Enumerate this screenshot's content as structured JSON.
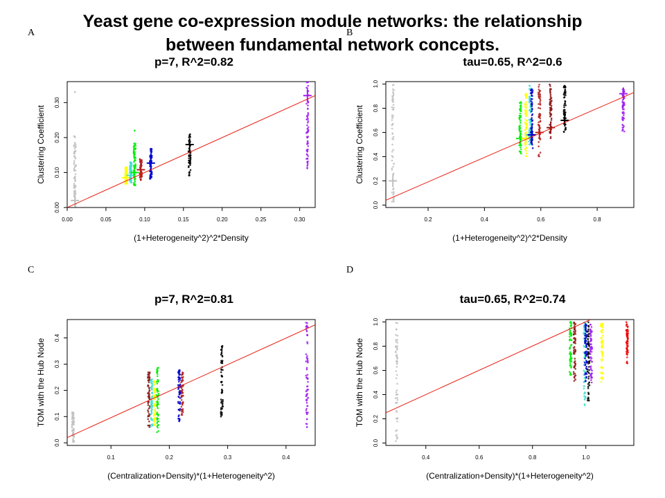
{
  "figure": {
    "title_lines": [
      "Yeast gene co-expression module networks: the relationship",
      "between fundamental network concepts."
    ]
  },
  "chart_data": [
    {
      "type": "scatter",
      "panel_letter": "A",
      "title": "p=7, R^2=0.82",
      "xlabel": "(1+Heterogeneity^2)^2*Density",
      "ylabel": "Clustering Coefficient",
      "xlim": [
        0.0,
        0.32
      ],
      "ylim": [
        0.0,
        0.36
      ],
      "x_ticks": [
        "0.00",
        "0.05",
        "0.10",
        "0.15",
        "0.20",
        "0.25",
        "0.30"
      ],
      "y_ticks": [
        "0.00",
        "0.10",
        "0.20",
        "0.30"
      ],
      "fit_line": [
        [
          0.0,
          0.0
        ],
        [
          0.32,
          0.32
        ]
      ],
      "series": [
        {
          "color": "#bfbfbf",
          "x": 0.01,
          "ymin": 0.0,
          "ymax": 0.205,
          "mean": 0.02,
          "outliers": [
            0.33
          ]
        },
        {
          "color": "#ffff00",
          "x": 0.076,
          "ymin": 0.065,
          "ymax": 0.115,
          "mean": 0.085
        },
        {
          "color": "#40e0d0",
          "x": 0.082,
          "ymin": 0.07,
          "ymax": 0.13,
          "mean": 0.092
        },
        {
          "color": "#00ee00",
          "x": 0.087,
          "ymin": 0.06,
          "ymax": 0.185,
          "mean": 0.1,
          "outliers": [
            0.22
          ]
        },
        {
          "color": "#b22222",
          "x": 0.095,
          "ymin": 0.075,
          "ymax": 0.14,
          "mean": 0.108
        },
        {
          "color": "#0000cd",
          "x": 0.108,
          "ymin": 0.08,
          "ymax": 0.17,
          "mean": 0.127
        },
        {
          "color": "#000000",
          "x": 0.158,
          "ymin": 0.09,
          "ymax": 0.21,
          "mean": 0.18
        },
        {
          "color": "#a020f0",
          "x": 0.31,
          "ymin": 0.11,
          "ymax": 0.36,
          "mean": 0.32,
          "outliers": [
            0.2,
            0.225,
            0.16,
            0.14,
            0.13,
            0.12
          ]
        }
      ]
    },
    {
      "type": "scatter",
      "panel_letter": "B",
      "title": "tau=0.65, R^2=0.6",
      "xlabel": "(1+Heterogeneity^2)^2*Density",
      "ylabel": "Clustering Coefficient",
      "xlim": [
        0.05,
        0.93
      ],
      "ylim": [
        -0.02,
        1.02
      ],
      "x_ticks": [
        "0.2",
        "0.4",
        "0.6",
        "0.8"
      ],
      "y_ticks": [
        "0.0",
        "0.2",
        "0.4",
        "0.6",
        "0.8",
        "1.0"
      ],
      "fit_line": [
        [
          0.05,
          0.04
        ],
        [
          0.93,
          0.93
        ]
      ],
      "series": [
        {
          "color": "#bfbfbf",
          "x": 0.075,
          "ymin": 0.0,
          "ymax": 1.0,
          "mean": 0.2
        },
        {
          "color": "#00ee00",
          "x": 0.527,
          "ymin": 0.42,
          "ymax": 0.86,
          "mean": 0.55
        },
        {
          "color": "#ffff00",
          "x": 0.547,
          "ymin": 0.4,
          "ymax": 0.92,
          "mean": 0.55
        },
        {
          "color": "#40e0d0",
          "x": 0.562,
          "ymin": 0.5,
          "ymax": 1.0,
          "mean": 0.58
        },
        {
          "color": "#0000cd",
          "x": 0.568,
          "ymin": 0.45,
          "ymax": 0.97,
          "mean": 0.58
        },
        {
          "color": "#b22222",
          "x": 0.595,
          "ymin": 0.4,
          "ymax": 1.0,
          "mean": 0.6
        },
        {
          "color": "#8b1a1a",
          "x": 0.635,
          "ymin": 0.55,
          "ymax": 1.0,
          "mean": 0.64
        },
        {
          "color": "#000000",
          "x": 0.685,
          "ymin": 0.6,
          "ymax": 1.0,
          "mean": 0.7
        },
        {
          "color": "#a020f0",
          "x": 0.893,
          "ymin": 0.6,
          "ymax": 1.0,
          "mean": 0.92
        }
      ]
    },
    {
      "type": "scatter",
      "panel_letter": "C",
      "title": "p=7, R^2=0.81",
      "xlabel": "(Centralization+Density)*(1+Heterogeneity^2)",
      "ylabel": "TOM with the Hub Node",
      "xlim": [
        0.025,
        0.45
      ],
      "ylim": [
        -0.01,
        0.47
      ],
      "x_ticks": [
        "0.1",
        "0.2",
        "0.3",
        "0.4"
      ],
      "y_ticks": [
        "0.0",
        "0.1",
        "0.2",
        "0.3",
        "0.4"
      ],
      "fit_line": [
        [
          0.025,
          0.02
        ],
        [
          0.45,
          0.45
        ]
      ],
      "series": [
        {
          "color": "#bfbfbf",
          "x": 0.035,
          "ymin": 0.0,
          "ymax": 0.12
        },
        {
          "color": "#8b1a1a",
          "x": 0.165,
          "ymin": 0.05,
          "ymax": 0.27
        },
        {
          "color": "#40e0d0",
          "x": 0.17,
          "ymin": 0.06,
          "ymax": 0.25
        },
        {
          "color": "#ffff00",
          "x": 0.175,
          "ymin": 0.06,
          "ymax": 0.24
        },
        {
          "color": "#00ee00",
          "x": 0.18,
          "ymin": 0.04,
          "ymax": 0.29
        },
        {
          "color": "#0000cd",
          "x": 0.217,
          "ymin": 0.08,
          "ymax": 0.28
        },
        {
          "color": "#b22222",
          "x": 0.222,
          "ymin": 0.1,
          "ymax": 0.27
        },
        {
          "color": "#000000",
          "x": 0.29,
          "ymin": 0.07,
          "ymax": 0.37
        },
        {
          "color": "#a020f0",
          "x": 0.436,
          "ymin": 0.06,
          "ymax": 0.46,
          "outliers": [
            0.11,
            0.09,
            0.06
          ]
        }
      ]
    },
    {
      "type": "scatter",
      "panel_letter": "D",
      "title": "tau=0.65, R^2=0.74",
      "xlabel": "(Centralization+Density)*(1+Heterogeneity^2)",
      "ylabel": "TOM with the Hub Node",
      "xlim": [
        0.25,
        1.18
      ],
      "ylim": [
        -0.02,
        1.02
      ],
      "x_ticks": [
        "0.4",
        "0.6",
        "0.8",
        "1.0"
      ],
      "y_ticks": [
        "0.0",
        "0.2",
        "0.4",
        "0.6",
        "0.8",
        "1.0"
      ],
      "fit_line": [
        [
          0.25,
          0.25
        ],
        [
          1.018,
          1.02
        ]
      ],
      "series": [
        {
          "color": "#bfbfbf",
          "x": 0.29,
          "ymin": 0.0,
          "ymax": 1.0
        },
        {
          "color": "#00ee00",
          "x": 0.943,
          "ymin": 0.55,
          "ymax": 1.0
        },
        {
          "color": "#8b1a1a",
          "x": 0.958,
          "ymin": 0.5,
          "ymax": 1.0
        },
        {
          "color": "#40e0d0",
          "x": 0.996,
          "ymin": 0.3,
          "ymax": 1.0
        },
        {
          "color": "#0000cd",
          "x": 1.0,
          "ymin": 0.5,
          "ymax": 1.0
        },
        {
          "color": "#000000",
          "x": 1.01,
          "ymin": 0.33,
          "ymax": 1.0
        },
        {
          "color": "#a020f0",
          "x": 1.02,
          "ymin": 0.45,
          "ymax": 1.0
        },
        {
          "color": "#ffff00",
          "x": 1.06,
          "ymin": 0.5,
          "ymax": 1.0
        },
        {
          "color": "#ee0000",
          "x": 1.155,
          "ymin": 0.65,
          "ymax": 1.0
        }
      ]
    }
  ]
}
